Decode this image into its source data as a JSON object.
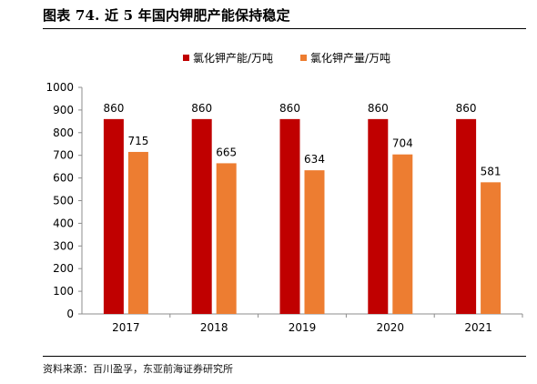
{
  "figure": {
    "title": "图表 74. 近 5 年国内钾肥产能保持稳定",
    "source": "资料来源：百川盈孚，东亚前海证券研究所"
  },
  "chart_data": {
    "type": "bar",
    "categories": [
      "2017",
      "2018",
      "2019",
      "2020",
      "2021"
    ],
    "series": [
      {
        "name": "氯化钾产能/万吨",
        "values": [
          860,
          860,
          860,
          860,
          860
        ],
        "color": "#C00000"
      },
      {
        "name": "氯化钾产量/万吨",
        "values": [
          715,
          665,
          634,
          704,
          581
        ],
        "color": "#ED7D31"
      }
    ],
    "ylim": [
      0,
      1000
    ],
    "yticks": [
      0,
      100,
      200,
      300,
      400,
      500,
      600,
      700,
      800,
      900,
      1000
    ],
    "grid": false,
    "legend": "top-right",
    "xlabel": "",
    "ylabel": ""
  }
}
